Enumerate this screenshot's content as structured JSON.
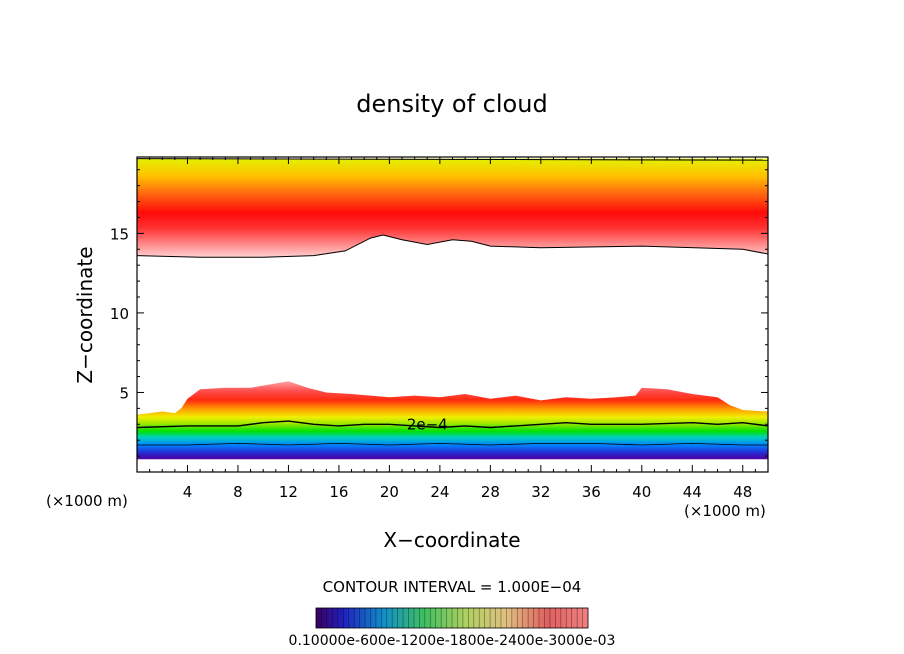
{
  "chart_data": {
    "type": "heatmap",
    "title": "density of cloud",
    "xlabel": "X−coordinate",
    "ylabel": "Z−coordinate",
    "x_unit_left": "(×1000 m)",
    "x_unit_right": "(×1000 m)",
    "xlim": [
      0,
      50
    ],
    "ylim": [
      0,
      19.8
    ],
    "x_ticks": [
      4,
      8,
      12,
      16,
      20,
      24,
      28,
      32,
      36,
      40,
      44,
      48
    ],
    "y_ticks": [
      5,
      10,
      15
    ],
    "contour_interval_text": "CONTOUR INTERVAL = 1.000E−04",
    "contour_label": "2e−4",
    "colorbar_label_text": "0.10000e-600e-1200e-1800e-2400e-3000e-03",
    "colorscale": [
      "#5a00a0",
      "#2a2ad0",
      "#0080ff",
      "#00d0c0",
      "#00e000",
      "#a0e800",
      "#e8f000",
      "#ffc000",
      "#ff6000",
      "#ff1010",
      "#ff9090"
    ],
    "upper_layer": {
      "lower_boundary": [
        [
          0,
          13.6
        ],
        [
          5,
          13.5
        ],
        [
          10,
          13.5
        ],
        [
          14,
          13.6
        ],
        [
          16.5,
          13.9
        ],
        [
          18.5,
          14.7
        ],
        [
          19.5,
          14.9
        ],
        [
          21,
          14.6
        ],
        [
          23,
          14.3
        ],
        [
          25,
          14.6
        ],
        [
          26.5,
          14.5
        ],
        [
          28,
          14.2
        ],
        [
          32,
          14.1
        ],
        [
          40,
          14.2
        ],
        [
          48,
          14.0
        ],
        [
          50,
          13.7
        ]
      ],
      "peak_z": 15.7,
      "top_z": 19.7
    },
    "lower_layer": {
      "top_boundary": [
        [
          0,
          3.6
        ],
        [
          2,
          3.8
        ],
        [
          3,
          3.7
        ],
        [
          3.5,
          4.0
        ],
        [
          4,
          4.6
        ],
        [
          5,
          5.2
        ],
        [
          7,
          5.3
        ],
        [
          9,
          5.3
        ],
        [
          10.5,
          5.5
        ],
        [
          12,
          5.7
        ],
        [
          13.5,
          5.3
        ],
        [
          15,
          5.0
        ],
        [
          17,
          4.9
        ],
        [
          20,
          4.7
        ],
        [
          22,
          4.8
        ],
        [
          24,
          4.7
        ],
        [
          26,
          4.9
        ],
        [
          28,
          4.6
        ],
        [
          30,
          4.8
        ],
        [
          32,
          4.5
        ],
        [
          34,
          4.7
        ],
        [
          36,
          4.6
        ],
        [
          38,
          4.7
        ],
        [
          39.5,
          4.8
        ],
        [
          40,
          5.3
        ],
        [
          42,
          5.2
        ],
        [
          44,
          4.9
        ],
        [
          46,
          4.7
        ],
        [
          47,
          4.2
        ],
        [
          48,
          3.9
        ],
        [
          50,
          3.8
        ]
      ],
      "contour_2e-4": [
        [
          0,
          2.8
        ],
        [
          4,
          2.9
        ],
        [
          8,
          2.9
        ],
        [
          10,
          3.1
        ],
        [
          12,
          3.2
        ],
        [
          14,
          3.0
        ],
        [
          16,
          2.9
        ],
        [
          18,
          3.0
        ],
        [
          20,
          3.0
        ],
        [
          22,
          2.9
        ],
        [
          24,
          2.8
        ],
        [
          26,
          2.9
        ],
        [
          28,
          2.8
        ],
        [
          30,
          2.9
        ],
        [
          32,
          3.0
        ],
        [
          34,
          3.1
        ],
        [
          36,
          3.0
        ],
        [
          40,
          3.0
        ],
        [
          44,
          3.1
        ],
        [
          46,
          3.0
        ],
        [
          48,
          3.1
        ],
        [
          50,
          2.9
        ]
      ],
      "contour_1e-4": [
        [
          0,
          1.7
        ],
        [
          4,
          1.7
        ],
        [
          8,
          1.8
        ],
        [
          12,
          1.7
        ],
        [
          16,
          1.8
        ],
        [
          20,
          1.7
        ],
        [
          24,
          1.8
        ],
        [
          28,
          1.7
        ],
        [
          32,
          1.8
        ],
        [
          36,
          1.8
        ],
        [
          40,
          1.7
        ],
        [
          44,
          1.8
        ],
        [
          48,
          1.7
        ],
        [
          50,
          1.7
        ]
      ],
      "bottom_z": 0.8
    }
  }
}
